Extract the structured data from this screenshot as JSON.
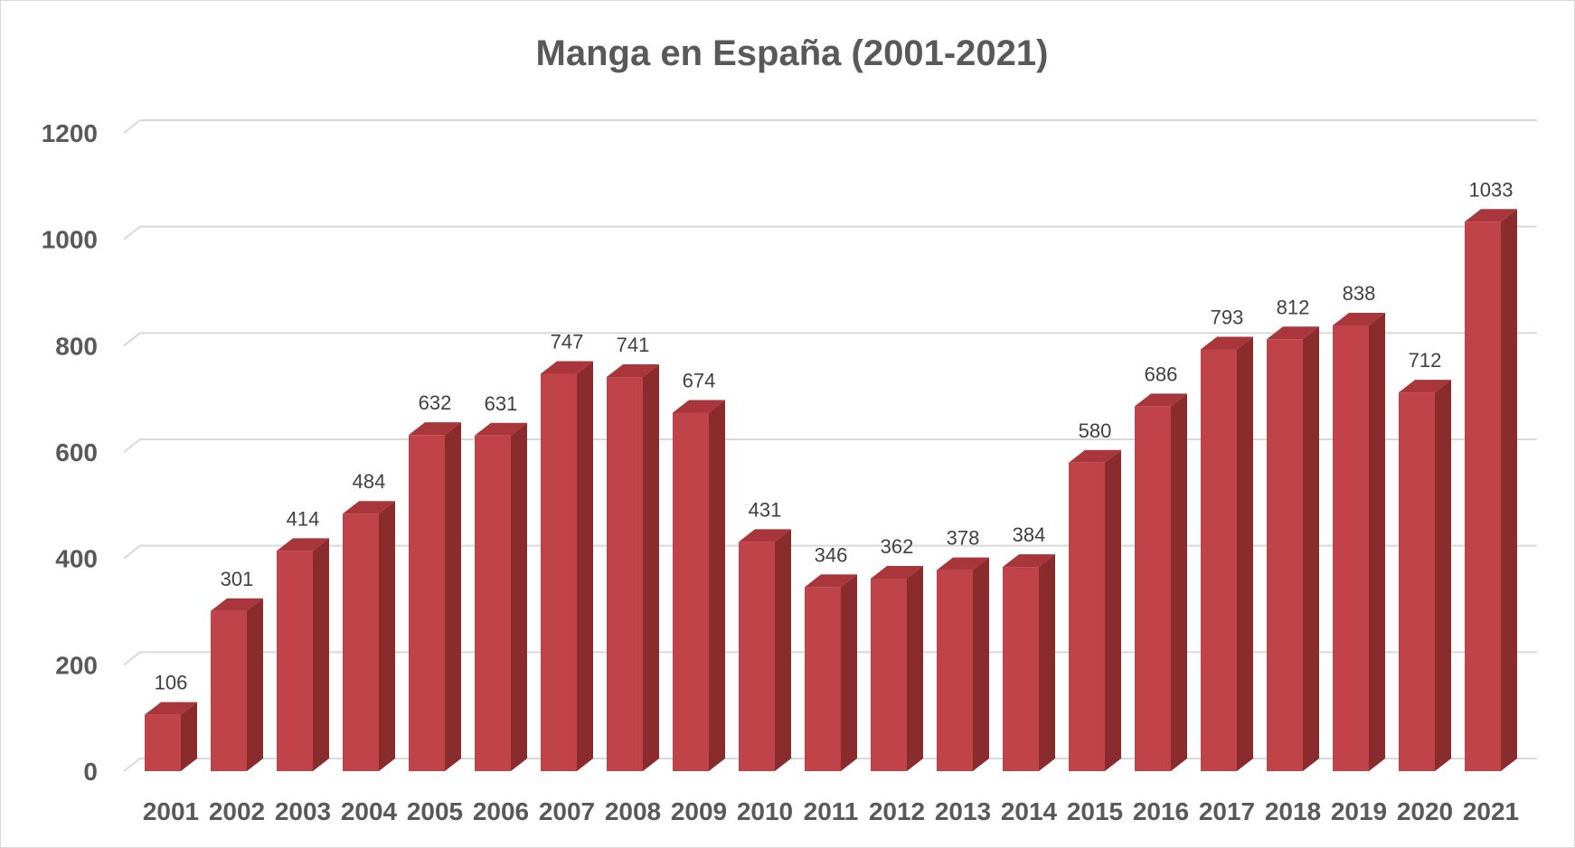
{
  "chart_data": {
    "type": "bar",
    "title": "Manga en España (2001-2021)",
    "xlabel": "",
    "ylabel": "",
    "categories": [
      "2001",
      "2002",
      "2003",
      "2004",
      "2005",
      "2006",
      "2007",
      "2008",
      "2009",
      "2010",
      "2011",
      "2012",
      "2013",
      "2014",
      "2015",
      "2016",
      "2017",
      "2018",
      "2019",
      "2020",
      "2021"
    ],
    "values": [
      106,
      301,
      414,
      484,
      632,
      631,
      747,
      741,
      674,
      431,
      346,
      362,
      378,
      384,
      580,
      686,
      793,
      812,
      838,
      712,
      1033
    ],
    "data_labels": [
      "106",
      "301",
      "414",
      "484",
      "632",
      "631",
      "747",
      "741",
      "674",
      "431",
      "346",
      "362",
      "378",
      "384",
      "580",
      "686",
      "793",
      "812",
      "838",
      "712",
      "1033"
    ],
    "ylim": [
      0,
      1200
    ],
    "yticks": [
      "0",
      "200",
      "400",
      "600",
      "800",
      "1000",
      "1200"
    ],
    "grid": true,
    "legend": "none",
    "style": "3d-column",
    "colors": {
      "bar_front": "#c0434a",
      "bar_side": "#8a2b2e",
      "bar_top": "#a8363b",
      "gridline": "#d9d9d9",
      "title": "#595959",
      "tick": "#595959",
      "data_label": "#404040"
    }
  }
}
